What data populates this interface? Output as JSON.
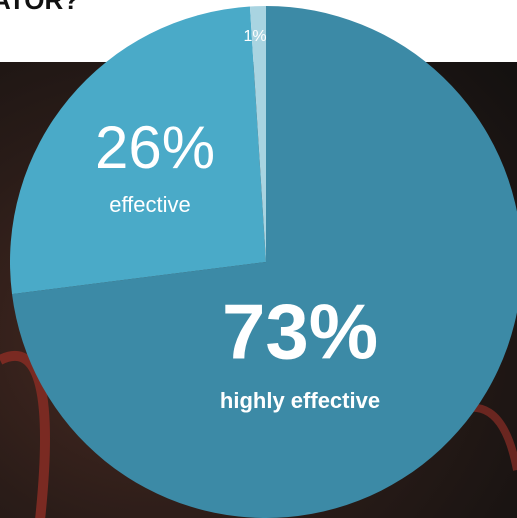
{
  "chart_data": {
    "type": "pie",
    "title": "ATOR?",
    "categories": [
      "highly effective",
      "effective",
      null
    ],
    "values": [
      73,
      26,
      1
    ],
    "value_labels": [
      "73%",
      "26%",
      "1%"
    ],
    "colors": [
      "#3c8aa6",
      "#4aaac8",
      "#a9d4e1"
    ]
  }
}
